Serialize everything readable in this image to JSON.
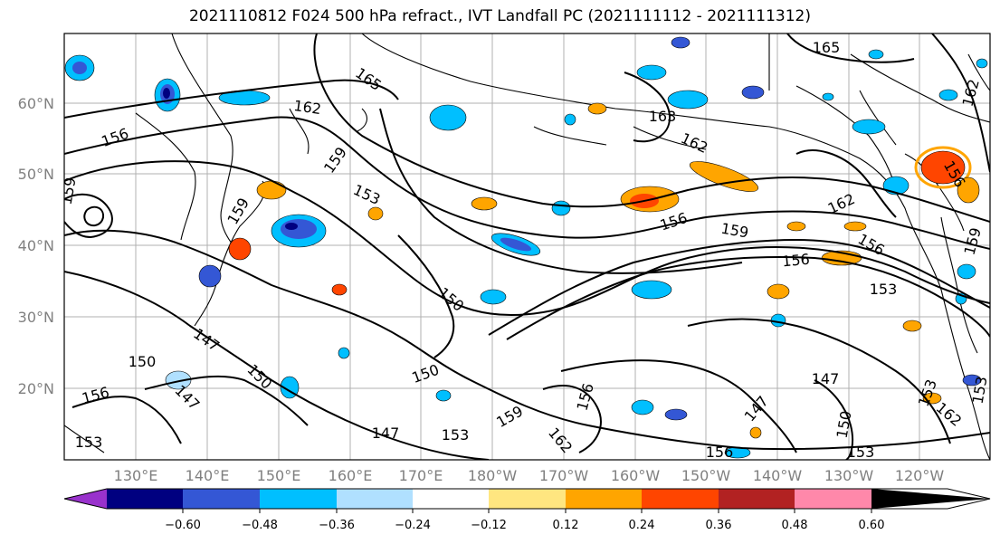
{
  "title": "2021110812 F024 500 hPa refract., IVT Landfall PC (2021111112 - 2021111312)",
  "lat_labels": [
    "60°N",
    "50°N",
    "40°N",
    "30°N",
    "20°N"
  ],
  "lon_labels": [
    "130°E",
    "140°E",
    "150°E",
    "160°E",
    "170°E",
    "180°W",
    "170°W",
    "160°W",
    "150°W",
    "140°W",
    "130°W",
    "120°W"
  ],
  "colorbar": {
    "colors": [
      "#9932cc",
      "#000080",
      "#3457d5",
      "#00bfff",
      "#b0e0ff",
      "#ffffff",
      "#ffe680",
      "#ffa500",
      "#ff4500",
      "#b22222",
      "#ff88aa"
    ],
    "tick_labels": [
      "−0.60",
      "−0.48",
      "−0.36",
      "−0.24",
      "−0.12",
      "0.12",
      "0.24",
      "0.36",
      "0.48",
      "0.60"
    ]
  },
  "contour_labels": [
    "165",
    "162",
    "165",
    "162",
    "163",
    "162",
    "156",
    "159",
    "153",
    "159",
    "156",
    "159",
    "162",
    "156",
    "156",
    "153",
    "159",
    "150",
    "147",
    "150",
    "150",
    "150",
    "147",
    "156",
    "147",
    "153",
    "159",
    "156",
    "162",
    "147",
    "147",
    "150",
    "153",
    "156",
    "156",
    "153",
    "153",
    "153",
    "159",
    "162"
  ]
}
